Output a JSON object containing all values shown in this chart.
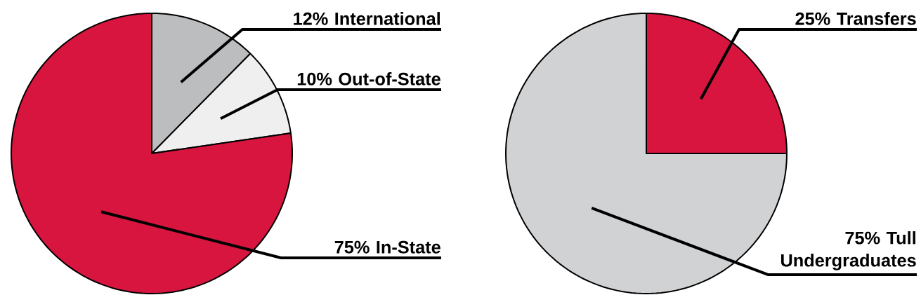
{
  "chart_data": [
    {
      "type": "pie",
      "categories": [
        "International",
        "Out-of-State",
        "In-State"
      ],
      "values": [
        12,
        10,
        75
      ],
      "value_labels": [
        "12%",
        "10%",
        "75%"
      ],
      "colors": [
        "#bcbdbf",
        "#efefef",
        "#d7153f"
      ]
    },
    {
      "type": "pie",
      "categories": [
        "Transfers",
        "Tull Undergraduates"
      ],
      "values": [
        25,
        75
      ],
      "value_labels": [
        "25%",
        "75%"
      ],
      "colors": [
        "#d7153f",
        "#d1d2d4"
      ]
    }
  ]
}
